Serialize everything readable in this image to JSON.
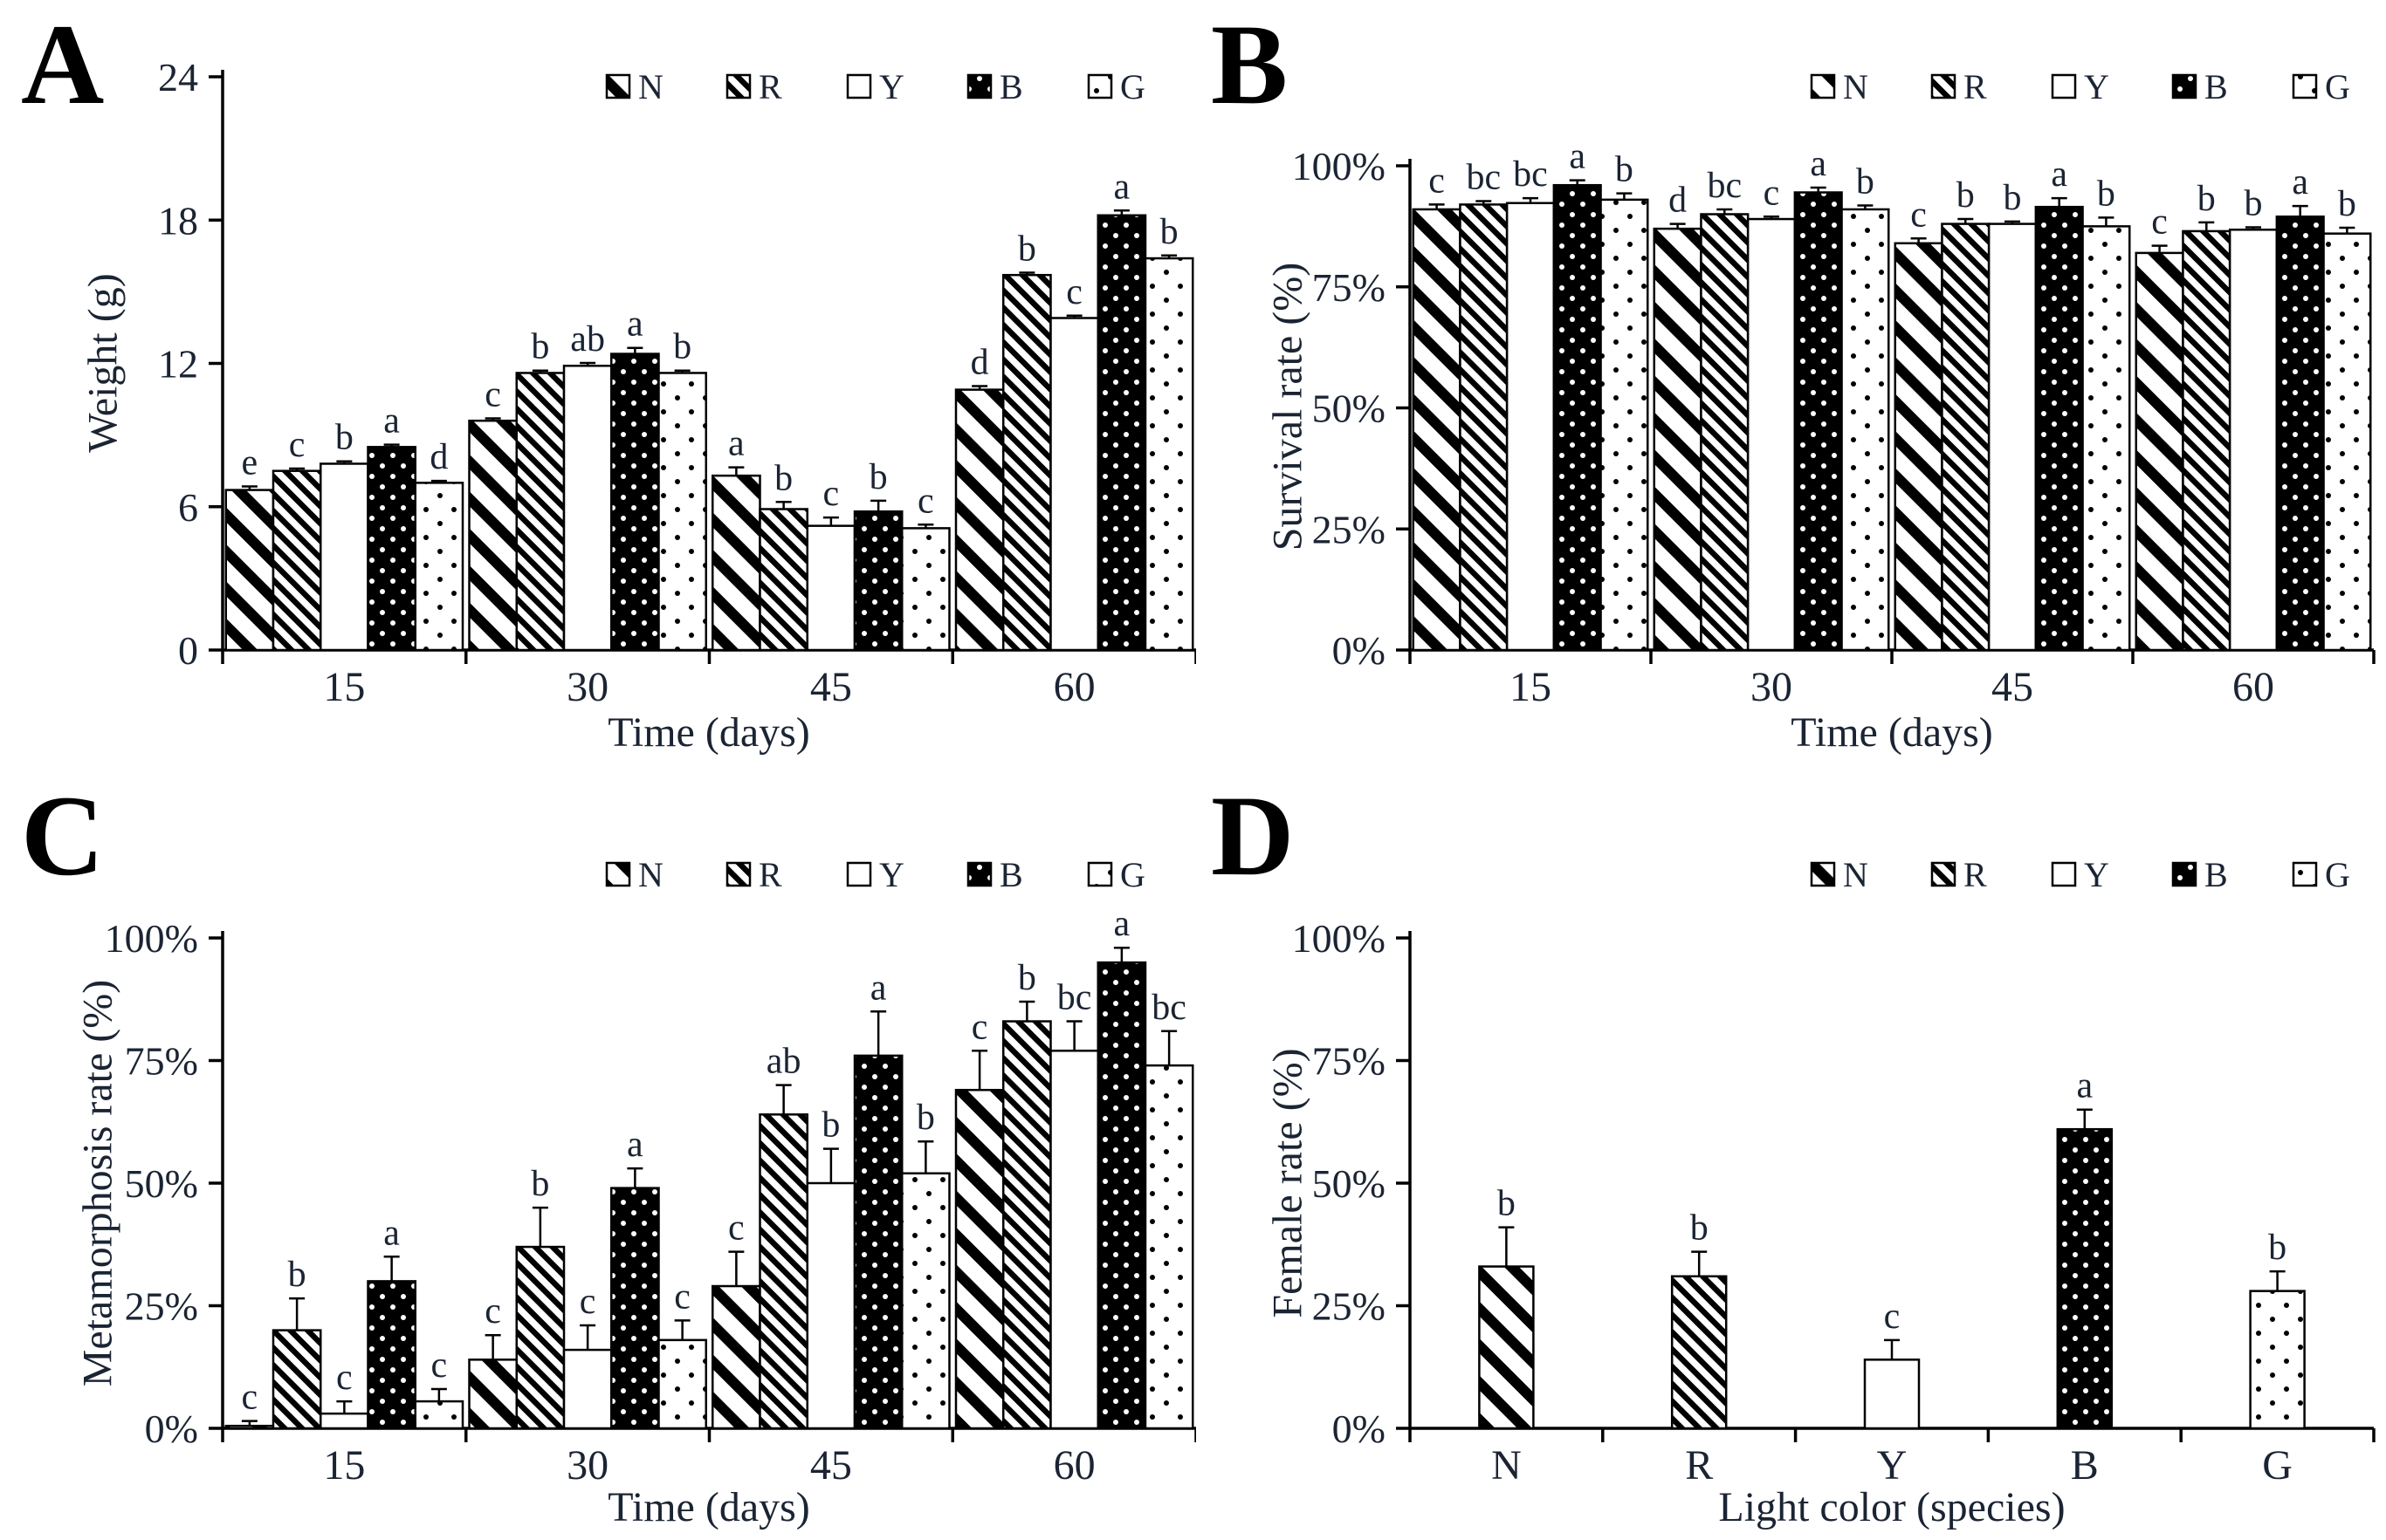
{
  "figure": {
    "background": "#ffffff",
    "ink": "#000000",
    "text_color": "#1b2433",
    "legend_labels": [
      "N",
      "R",
      "Y",
      "B",
      "G"
    ]
  },
  "chart_data": [
    {
      "letter": "A",
      "type": "bar",
      "ylabel": "Weight (g)",
      "xlabel": "Time (days)",
      "categories": [
        "15",
        "30",
        "45",
        "60"
      ],
      "ylim": [
        0,
        24
      ],
      "yticks": [
        0,
        6,
        12,
        18,
        24
      ],
      "ytick_labels": [
        "0",
        "6",
        "12",
        "18",
        "24"
      ],
      "grid": false,
      "legend_position": "top-center",
      "series": [
        {
          "name": "N",
          "pattern": "wide-diagonal",
          "values": [
            6.7,
            9.6,
            7.3,
            10.9
          ],
          "errors": [
            0.15,
            0.1,
            0.35,
            0.15
          ],
          "letters": [
            "e",
            "c",
            "a",
            "d"
          ]
        },
        {
          "name": "R",
          "pattern": "fine-diagonal",
          "values": [
            7.5,
            11.6,
            5.9,
            15.7
          ],
          "errors": [
            0.1,
            0.1,
            0.3,
            0.1
          ],
          "letters": [
            "c",
            "b",
            "b",
            "b"
          ]
        },
        {
          "name": "Y",
          "pattern": "plain-white",
          "values": [
            7.8,
            11.9,
            5.2,
            13.9
          ],
          "errors": [
            0.1,
            0.12,
            0.35,
            0.1
          ],
          "letters": [
            "b",
            "ab",
            "c",
            "c"
          ]
        },
        {
          "name": "B",
          "pattern": "black-white-dots",
          "values": [
            8.5,
            12.4,
            5.8,
            18.2
          ],
          "errors": [
            0.1,
            0.25,
            0.45,
            0.2
          ],
          "letters": [
            "a",
            "a",
            "b",
            "a"
          ]
        },
        {
          "name": "G",
          "pattern": "white-black-dots",
          "values": [
            7.0,
            11.6,
            5.1,
            16.4
          ],
          "errors": [
            0.08,
            0.1,
            0.15,
            0.12
          ],
          "letters": [
            "d",
            "b",
            "c",
            "b"
          ]
        }
      ]
    },
    {
      "letter": "B",
      "type": "bar",
      "ylabel": "Survival rate (%)",
      "xlabel": "Time (days)",
      "categories": [
        "15",
        "30",
        "45",
        "60"
      ],
      "ylim": [
        0,
        100
      ],
      "yticks": [
        0,
        25,
        50,
        75,
        100
      ],
      "ytick_labels": [
        "0%",
        "25%",
        "50%",
        "75%",
        "100%"
      ],
      "grid": false,
      "legend_position": "top-center",
      "series": [
        {
          "name": "N",
          "pattern": "wide-diagonal",
          "values": [
            91,
            87,
            84,
            82
          ],
          "errors": [
            1,
            1,
            1,
            1.5
          ],
          "letters": [
            "c",
            "d",
            "c",
            "c"
          ]
        },
        {
          "name": "R",
          "pattern": "fine-diagonal",
          "values": [
            92,
            90,
            88,
            86.5
          ],
          "errors": [
            0.7,
            1,
            1,
            1.8
          ],
          "letters": [
            "bc",
            "bc",
            "b",
            "b"
          ]
        },
        {
          "name": "Y",
          "pattern": "plain-white",
          "values": [
            92.3,
            89,
            88,
            86.8
          ],
          "errors": [
            1,
            0.5,
            0.5,
            0.5
          ],
          "letters": [
            "bc",
            "c",
            "b",
            "b"
          ]
        },
        {
          "name": "B",
          "pattern": "black-white-dots",
          "values": [
            96,
            94.5,
            91.5,
            89.5
          ],
          "errors": [
            1,
            1,
            1.8,
            2.2
          ],
          "letters": [
            "a",
            "a",
            "a",
            "a"
          ]
        },
        {
          "name": "G",
          "pattern": "white-black-dots",
          "values": [
            93,
            91,
            87.5,
            86
          ],
          "errors": [
            1.3,
            0.8,
            1.8,
            1.2
          ],
          "letters": [
            "b",
            "b",
            "b",
            "b"
          ]
        }
      ]
    },
    {
      "letter": "C",
      "type": "bar",
      "ylabel": "Metamorphosis rate (%)",
      "xlabel": "Time (days)",
      "categories": [
        "15",
        "30",
        "45",
        "60"
      ],
      "ylim": [
        0,
        100
      ],
      "yticks": [
        0,
        25,
        50,
        75,
        100
      ],
      "ytick_labels": [
        "0%",
        "25%",
        "50%",
        "75%",
        "100%"
      ],
      "grid": false,
      "legend_position": "top-center",
      "series": [
        {
          "name": "N",
          "pattern": "wide-diagonal",
          "values": [
            0.5,
            14,
            29,
            69
          ],
          "errors": [
            1,
            5,
            7,
            8
          ],
          "letters": [
            "c",
            "c",
            "c",
            "c"
          ]
        },
        {
          "name": "R",
          "pattern": "fine-diagonal",
          "values": [
            20,
            37,
            64,
            83
          ],
          "errors": [
            6.5,
            8,
            6,
            4
          ],
          "letters": [
            "b",
            "b",
            "ab",
            "b"
          ]
        },
        {
          "name": "Y",
          "pattern": "plain-white",
          "values": [
            3,
            16,
            50,
            77
          ],
          "errors": [
            2.5,
            5,
            7,
            6
          ],
          "letters": [
            "c",
            "c",
            "b",
            "bc"
          ]
        },
        {
          "name": "B",
          "pattern": "black-white-dots",
          "values": [
            30,
            49,
            76,
            95
          ],
          "errors": [
            5,
            4,
            9,
            3
          ],
          "letters": [
            "a",
            "a",
            "a",
            "a"
          ]
        },
        {
          "name": "G",
          "pattern": "white-black-dots",
          "values": [
            5.5,
            18,
            52,
            74
          ],
          "errors": [
            2.5,
            4,
            6.5,
            7
          ],
          "letters": [
            "c",
            "c",
            "b",
            "bc"
          ]
        }
      ]
    },
    {
      "letter": "D",
      "type": "bar",
      "ylabel": "Female rate (%)",
      "xlabel": "Light color (species)",
      "categories": [
        "N",
        "R",
        "Y",
        "B",
        "G"
      ],
      "ylim": [
        0,
        100
      ],
      "yticks": [
        0,
        25,
        50,
        75,
        100
      ],
      "ytick_labels": [
        "0%",
        "25%",
        "50%",
        "75%",
        "100%"
      ],
      "grid": false,
      "legend_position": "top-center",
      "legend_labels": [
        "N",
        "R",
        "Y",
        "B",
        "G"
      ],
      "single_bars": [
        {
          "label": "N",
          "pattern": "wide-diagonal",
          "value": 33,
          "error": 8,
          "letter": "b"
        },
        {
          "label": "R",
          "pattern": "fine-diagonal",
          "value": 31,
          "error": 5,
          "letter": "b"
        },
        {
          "label": "Y",
          "pattern": "plain-white",
          "value": 14,
          "error": 4,
          "letter": "c"
        },
        {
          "label": "B",
          "pattern": "black-white-dots",
          "value": 61,
          "error": 4,
          "letter": "a"
        },
        {
          "label": "G",
          "pattern": "white-black-dots",
          "value": 28,
          "error": 4,
          "letter": "b"
        }
      ]
    }
  ]
}
